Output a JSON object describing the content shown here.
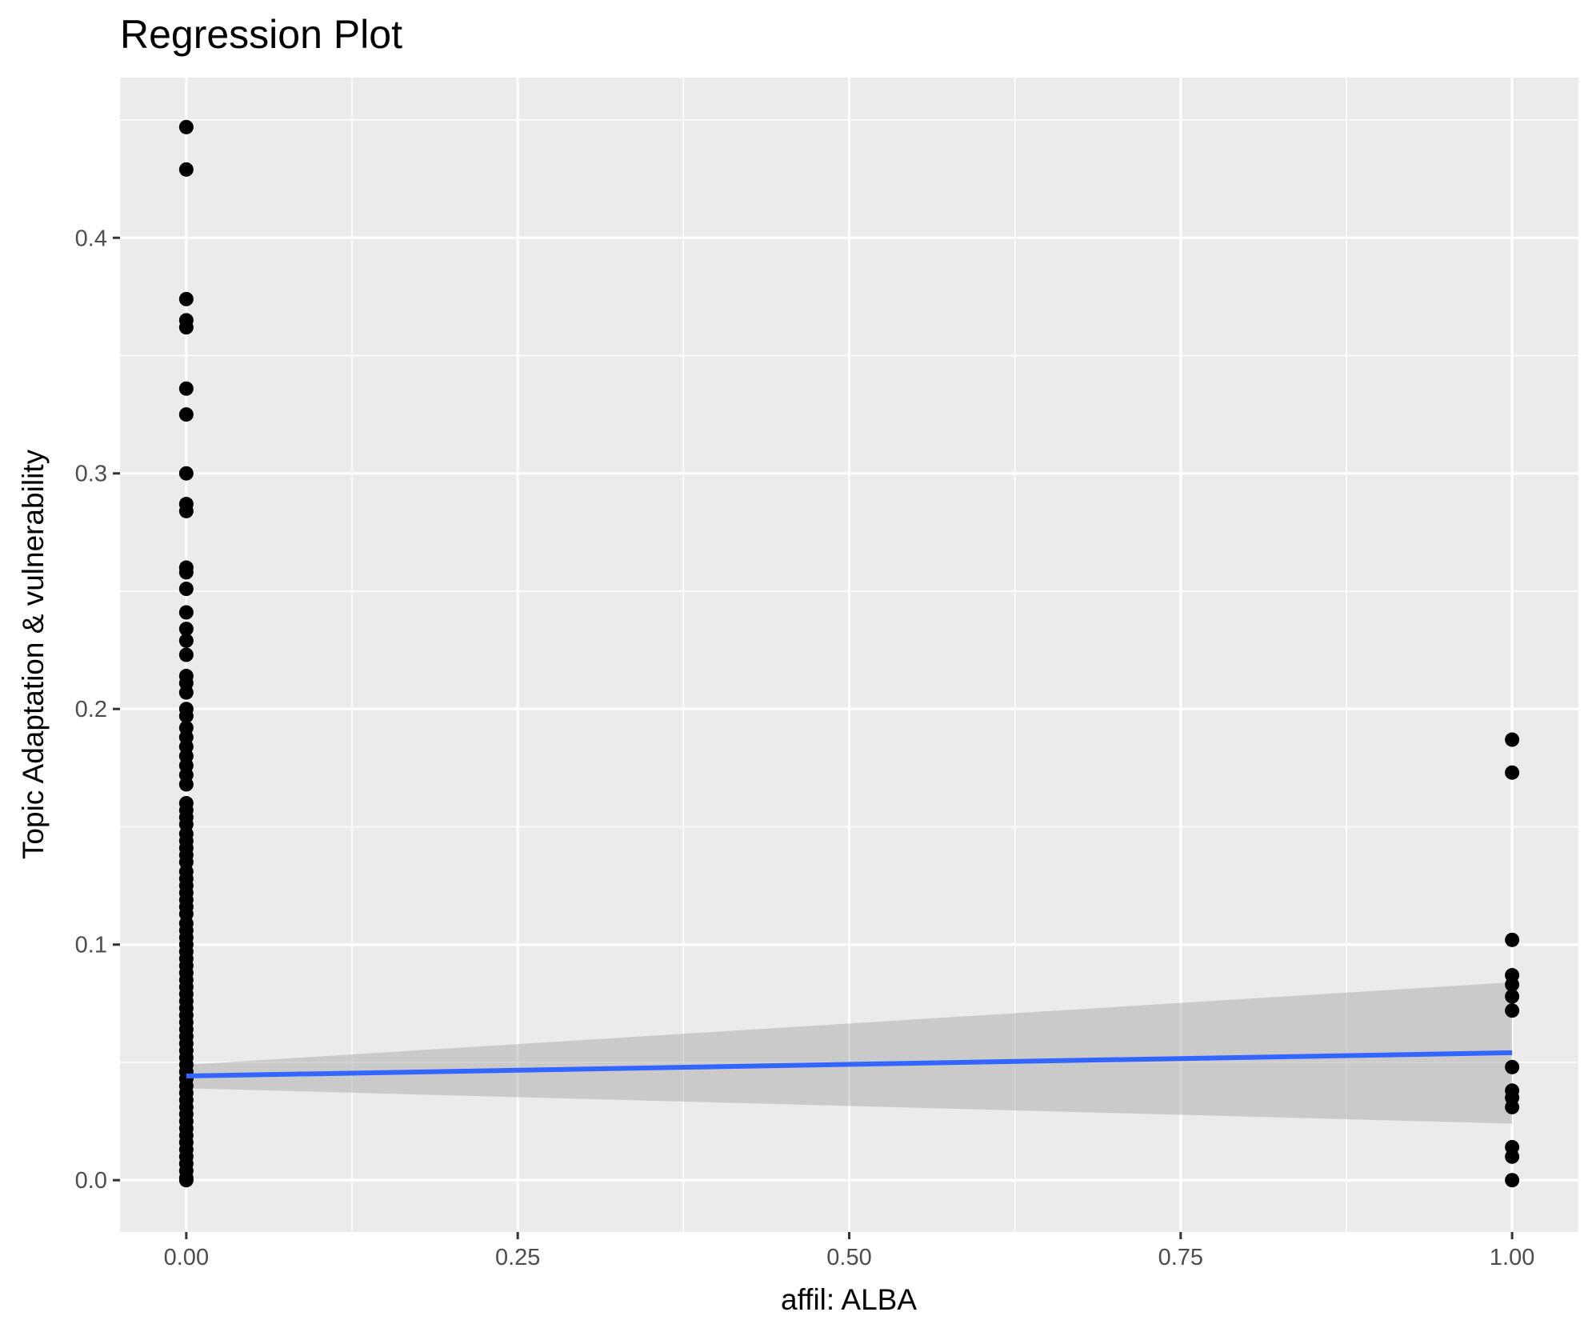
{
  "chart_data": {
    "type": "scatter",
    "title": "Regression Plot",
    "xlabel": "affil: ALBA",
    "ylabel": "Topic Adaptation & vulnerability",
    "xlim": [
      -0.05,
      1.05
    ],
    "ylim": [
      -0.022,
      0.468
    ],
    "x_ticks": [
      {
        "value": 0.0,
        "label": "0.00"
      },
      {
        "value": 0.25,
        "label": "0.25"
      },
      {
        "value": 0.5,
        "label": "0.50"
      },
      {
        "value": 0.75,
        "label": "0.75"
      },
      {
        "value": 1.0,
        "label": "1.00"
      }
    ],
    "y_ticks": [
      {
        "value": 0.0,
        "label": "0.0"
      },
      {
        "value": 0.1,
        "label": "0.1"
      },
      {
        "value": 0.2,
        "label": "0.2"
      },
      {
        "value": 0.3,
        "label": "0.3"
      },
      {
        "value": 0.4,
        "label": "0.4"
      }
    ],
    "x_minor_grid": [
      0.125,
      0.375,
      0.625,
      0.875
    ],
    "y_minor_grid": [
      0.05,
      0.15,
      0.25,
      0.35,
      0.45
    ],
    "grid": true,
    "panel_background": "#ebebeb",
    "grid_color": "#ffffff",
    "point_color": "#000000",
    "points": [
      {
        "x": 0,
        "y": 0.447
      },
      {
        "x": 0,
        "y": 0.429
      },
      {
        "x": 0,
        "y": 0.374
      },
      {
        "x": 0,
        "y": 0.365
      },
      {
        "x": 0,
        "y": 0.362
      },
      {
        "x": 0,
        "y": 0.336
      },
      {
        "x": 0,
        "y": 0.325
      },
      {
        "x": 0,
        "y": 0.3
      },
      {
        "x": 0,
        "y": 0.287
      },
      {
        "x": 0,
        "y": 0.284
      },
      {
        "x": 0,
        "y": 0.26
      },
      {
        "x": 0,
        "y": 0.258
      },
      {
        "x": 0,
        "y": 0.251
      },
      {
        "x": 0,
        "y": 0.241
      },
      {
        "x": 0,
        "y": 0.234
      },
      {
        "x": 0,
        "y": 0.229
      },
      {
        "x": 0,
        "y": 0.223
      },
      {
        "x": 0,
        "y": 0.214
      },
      {
        "x": 0,
        "y": 0.211
      },
      {
        "x": 0,
        "y": 0.207
      },
      {
        "x": 0,
        "y": 0.2
      },
      {
        "x": 0,
        "y": 0.197
      },
      {
        "x": 0,
        "y": 0.192
      },
      {
        "x": 0,
        "y": 0.188
      },
      {
        "x": 0,
        "y": 0.184
      },
      {
        "x": 0,
        "y": 0.18
      },
      {
        "x": 0,
        "y": 0.176
      },
      {
        "x": 0,
        "y": 0.172
      },
      {
        "x": 0,
        "y": 0.168
      },
      {
        "x": 0,
        "y": 0.16
      },
      {
        "x": 0,
        "y": 0.157
      },
      {
        "x": 0,
        "y": 0.154
      },
      {
        "x": 0,
        "y": 0.151
      },
      {
        "x": 0,
        "y": 0.147
      },
      {
        "x": 0,
        "y": 0.144
      },
      {
        "x": 0,
        "y": 0.141
      },
      {
        "x": 0,
        "y": 0.138
      },
      {
        "x": 0,
        "y": 0.135
      },
      {
        "x": 0,
        "y": 0.131
      },
      {
        "x": 0,
        "y": 0.128
      },
      {
        "x": 0,
        "y": 0.125
      },
      {
        "x": 0,
        "y": 0.122
      },
      {
        "x": 0,
        "y": 0.119
      },
      {
        "x": 0,
        "y": 0.116
      },
      {
        "x": 0,
        "y": 0.113
      },
      {
        "x": 0,
        "y": 0.109
      },
      {
        "x": 0,
        "y": 0.106
      },
      {
        "x": 0,
        "y": 0.103
      },
      {
        "x": 0,
        "y": 0.1
      },
      {
        "x": 0,
        "y": 0.097
      },
      {
        "x": 0,
        "y": 0.094
      },
      {
        "x": 0,
        "y": 0.091
      },
      {
        "x": 0,
        "y": 0.088
      },
      {
        "x": 0,
        "y": 0.085
      },
      {
        "x": 0,
        "y": 0.082
      },
      {
        "x": 0,
        "y": 0.079
      },
      {
        "x": 0,
        "y": 0.076
      },
      {
        "x": 0,
        "y": 0.073
      },
      {
        "x": 0,
        "y": 0.07
      },
      {
        "x": 0,
        "y": 0.067
      },
      {
        "x": 0,
        "y": 0.064
      },
      {
        "x": 0,
        "y": 0.061
      },
      {
        "x": 0,
        "y": 0.058
      },
      {
        "x": 0,
        "y": 0.055
      },
      {
        "x": 0,
        "y": 0.052
      },
      {
        "x": 0,
        "y": 0.049
      },
      {
        "x": 0,
        "y": 0.046
      },
      {
        "x": 0,
        "y": 0.043
      },
      {
        "x": 0,
        "y": 0.04
      },
      {
        "x": 0,
        "y": 0.037
      },
      {
        "x": 0,
        "y": 0.034
      },
      {
        "x": 0,
        "y": 0.031
      },
      {
        "x": 0,
        "y": 0.028
      },
      {
        "x": 0,
        "y": 0.025
      },
      {
        "x": 0,
        "y": 0.022
      },
      {
        "x": 0,
        "y": 0.019
      },
      {
        "x": 0,
        "y": 0.016
      },
      {
        "x": 0,
        "y": 0.013
      },
      {
        "x": 0,
        "y": 0.01
      },
      {
        "x": 0,
        "y": 0.007
      },
      {
        "x": 0,
        "y": 0.004
      },
      {
        "x": 0,
        "y": 0.001
      },
      {
        "x": 0,
        "y": 0.0
      },
      {
        "x": 1,
        "y": 0.187
      },
      {
        "x": 1,
        "y": 0.173
      },
      {
        "x": 1,
        "y": 0.102
      },
      {
        "x": 1,
        "y": 0.087
      },
      {
        "x": 1,
        "y": 0.083
      },
      {
        "x": 1,
        "y": 0.078
      },
      {
        "x": 1,
        "y": 0.072
      },
      {
        "x": 1,
        "y": 0.048
      },
      {
        "x": 1,
        "y": 0.038
      },
      {
        "x": 1,
        "y": 0.035
      },
      {
        "x": 1,
        "y": 0.031
      },
      {
        "x": 1,
        "y": 0.014
      },
      {
        "x": 1,
        "y": 0.01
      },
      {
        "x": 1,
        "y": 0.0
      }
    ],
    "regression": {
      "color": "#3366ff",
      "band_color": "#999999",
      "line": [
        {
          "x": 0,
          "y": 0.0442
        },
        {
          "x": 1,
          "y": 0.0541
        }
      ],
      "band_lower": [
        {
          "x": 0,
          "y": 0.039
        },
        {
          "x": 1,
          "y": 0.024
        }
      ],
      "band_upper": [
        {
          "x": 0,
          "y": 0.049
        },
        {
          "x": 1,
          "y": 0.084
        }
      ]
    }
  }
}
